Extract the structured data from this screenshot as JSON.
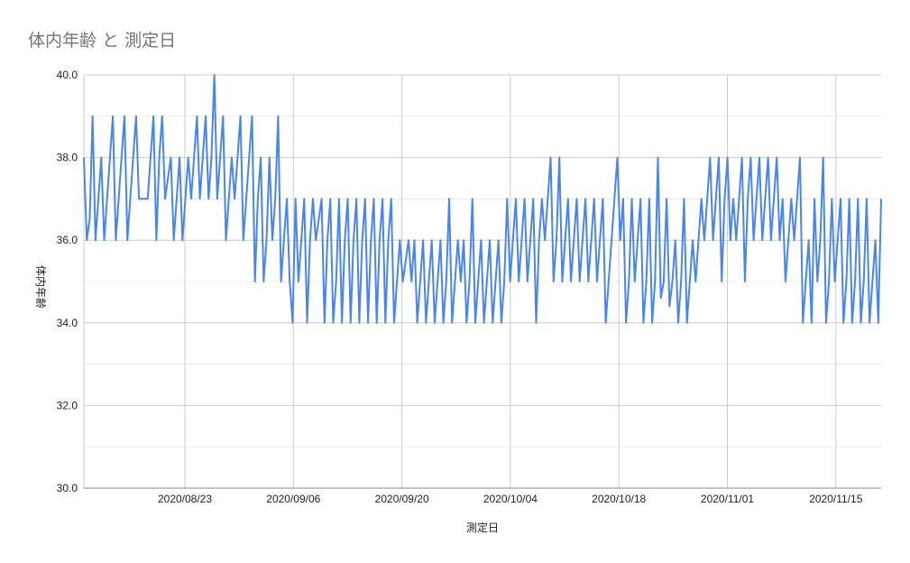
{
  "chart_data": {
    "type": "line",
    "title": "体内年齢 と 測定日",
    "xlabel": "測定日",
    "ylabel": "体内年齢",
    "ylim": [
      30,
      40
    ],
    "y_ticks": [
      "30.0",
      "32.0",
      "34.0",
      "36.0",
      "38.0",
      "40.0"
    ],
    "x_ticks": [
      "2020/08/23",
      "2020/09/06",
      "2020/09/20",
      "2020/10/04",
      "2020/10/18",
      "2020/11/01",
      "2020/11/15"
    ],
    "grid": true,
    "legend": "none",
    "series": [
      {
        "color": "#4a86e8",
        "values": [
          38,
          36,
          36.5,
          39,
          36,
          37,
          38,
          36,
          37,
          38,
          39,
          36,
          37,
          38,
          39,
          36,
          37,
          38,
          39,
          37,
          37,
          37,
          37,
          38,
          39,
          36,
          38,
          39,
          37,
          37.5,
          38,
          36,
          37,
          38,
          36,
          37,
          38,
          37,
          38,
          39,
          37,
          38,
          39,
          37,
          38,
          40,
          37,
          38,
          39,
          36,
          37,
          38,
          37,
          38,
          39,
          36,
          37,
          38,
          39,
          35,
          37,
          38,
          35,
          36,
          38,
          36,
          37,
          39,
          35,
          36,
          37,
          35,
          34,
          37,
          35,
          36,
          37,
          34,
          36,
          37,
          36,
          36.5,
          37,
          34,
          36,
          37,
          34,
          35,
          37,
          34,
          36,
          37,
          34,
          36,
          37,
          34,
          36,
          37,
          34,
          36,
          37,
          34,
          36,
          37,
          34,
          36,
          37,
          34,
          35,
          36,
          35,
          35.5,
          36,
          35,
          36,
          34,
          35,
          36,
          34,
          35,
          36,
          34,
          35,
          36,
          34,
          35,
          37,
          34,
          35,
          36,
          35,
          36,
          34,
          35,
          37,
          34,
          35,
          36,
          34,
          35,
          36,
          34,
          35,
          36,
          34,
          35,
          37,
          35,
          36,
          37,
          35,
          36,
          37,
          35,
          36,
          37,
          34,
          36,
          37,
          36,
          37,
          38,
          35,
          36,
          38,
          35,
          36,
          37,
          35,
          36,
          37,
          35,
          36,
          37,
          35,
          36,
          37,
          35,
          36,
          37,
          34,
          35,
          36,
          37,
          38,
          36,
          37,
          34,
          35,
          37,
          35,
          36,
          37,
          34,
          35,
          37,
          34,
          35,
          38,
          34.6,
          35,
          37,
          34.4,
          35,
          36,
          34,
          35,
          37,
          34,
          35,
          36,
          35,
          36,
          37,
          36,
          37,
          38,
          36,
          37,
          38,
          35,
          37,
          38,
          36,
          37,
          36,
          37,
          38,
          35,
          37,
          38,
          36,
          37,
          38,
          36,
          37,
          38,
          36,
          37,
          38,
          36,
          37,
          35,
          36,
          37,
          36,
          37,
          38,
          34,
          35,
          36,
          34,
          37,
          35,
          36,
          38,
          34,
          35,
          37,
          35,
          36,
          37,
          34,
          35,
          37,
          34,
          35,
          37,
          34,
          35,
          37,
          34,
          35,
          36,
          34,
          37
        ]
      }
    ]
  }
}
